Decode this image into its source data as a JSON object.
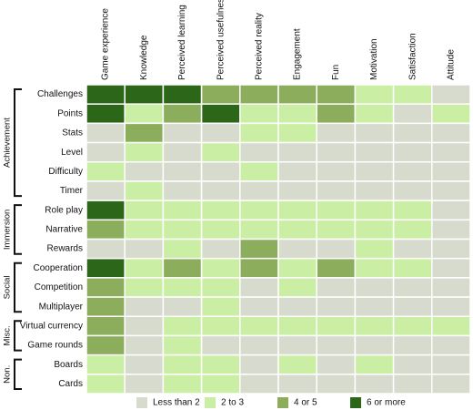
{
  "chart_data": {
    "type": "heatmap",
    "columns": [
      "Game experience",
      "Knowledge",
      "Perceived learning",
      "Perceived usefulness",
      "Perceived reality",
      "Engagement",
      "Fun",
      "Motivation",
      "Satisfaction",
      "Attitude"
    ],
    "groups": [
      {
        "name": "Achievement",
        "rows": [
          "Challenges",
          "Points",
          "Stats",
          "Level",
          "Difficulty",
          "Timer"
        ]
      },
      {
        "name": "Immersion",
        "rows": [
          "Role play",
          "Narrative",
          "Rewards"
        ]
      },
      {
        "name": "Social",
        "rows": [
          "Cooperation",
          "Competition",
          "Multiplayer"
        ]
      },
      {
        "name": "Misc.",
        "rows": [
          "Virtual currency",
          "Game rounds"
        ]
      },
      {
        "name": "Non.",
        "rows": [
          "Boards",
          "Cards"
        ]
      }
    ],
    "legend": [
      {
        "name": "Less than 2",
        "color": "#d6dbcd"
      },
      {
        "name": "2 to 3",
        "color": "#cbeea5"
      },
      {
        "name": "4 or 5",
        "color": "#8bad5c"
      },
      {
        "name": "6 or more",
        "color": "#2b6619"
      }
    ],
    "values": [
      [
        3,
        3,
        3,
        2,
        2,
        2,
        2,
        1,
        1,
        0
      ],
      [
        3,
        1,
        2,
        3,
        1,
        1,
        2,
        1,
        0,
        1
      ],
      [
        0,
        2,
        0,
        0,
        1,
        1,
        0,
        0,
        0,
        0
      ],
      [
        0,
        1,
        0,
        1,
        0,
        0,
        0,
        0,
        0,
        0
      ],
      [
        1,
        0,
        0,
        0,
        1,
        0,
        0,
        0,
        0,
        0
      ],
      [
        0,
        1,
        0,
        0,
        0,
        0,
        0,
        0,
        0,
        0
      ],
      [
        3,
        1,
        1,
        1,
        1,
        1,
        1,
        1,
        1,
        0
      ],
      [
        2,
        1,
        1,
        1,
        1,
        1,
        1,
        1,
        1,
        0
      ],
      [
        0,
        0,
        1,
        0,
        2,
        0,
        0,
        1,
        0,
        0
      ],
      [
        3,
        1,
        2,
        1,
        2,
        1,
        2,
        1,
        1,
        0
      ],
      [
        2,
        1,
        1,
        1,
        0,
        1,
        0,
        0,
        0,
        0
      ],
      [
        2,
        0,
        0,
        1,
        0,
        0,
        0,
        0,
        0,
        0
      ],
      [
        2,
        0,
        1,
        1,
        1,
        1,
        1,
        1,
        1,
        1
      ],
      [
        2,
        0,
        1,
        0,
        0,
        0,
        0,
        0,
        0,
        0
      ],
      [
        1,
        0,
        1,
        1,
        0,
        1,
        0,
        1,
        0,
        0
      ],
      [
        1,
        0,
        1,
        1,
        0,
        0,
        0,
        0,
        0,
        0
      ]
    ]
  }
}
